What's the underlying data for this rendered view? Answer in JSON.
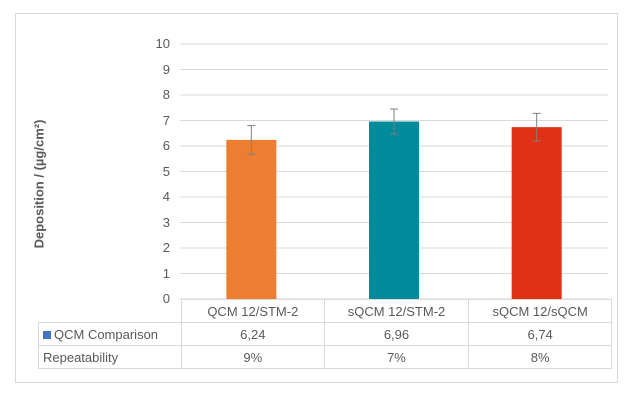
{
  "chart_data": {
    "type": "bar",
    "title": "",
    "ylabel": "Deposition / (µg/cm²)",
    "xlabel": "",
    "ylim": [
      0,
      10
    ],
    "yticks": [
      "0",
      "1",
      "2",
      "3",
      "4",
      "5",
      "6",
      "7",
      "8",
      "9",
      "10"
    ],
    "grid": true,
    "categories": [
      "QCM 12/STM-2",
      "sQCM 12/STM-2",
      "sQCM 12/sQCM"
    ],
    "series": [
      {
        "name": "QCM Comparison",
        "values": [
          6.24,
          6.96,
          6.74
        ],
        "labels": [
          "6,24",
          "6,96",
          "6,74"
        ],
        "error": [
          0.56,
          0.49,
          0.54
        ],
        "colors": [
          "#ED7D31",
          "#008B9A",
          "#E03015"
        ],
        "legend_color": "#4472C4"
      }
    ],
    "table_rows": [
      {
        "label": "QCM Comparison",
        "values": [
          "6,24",
          "6,96",
          "6,74"
        ],
        "key_color": "#4472C4"
      },
      {
        "label": "Repeatability",
        "values": [
          "9%",
          "7%",
          "8%"
        ]
      }
    ]
  }
}
